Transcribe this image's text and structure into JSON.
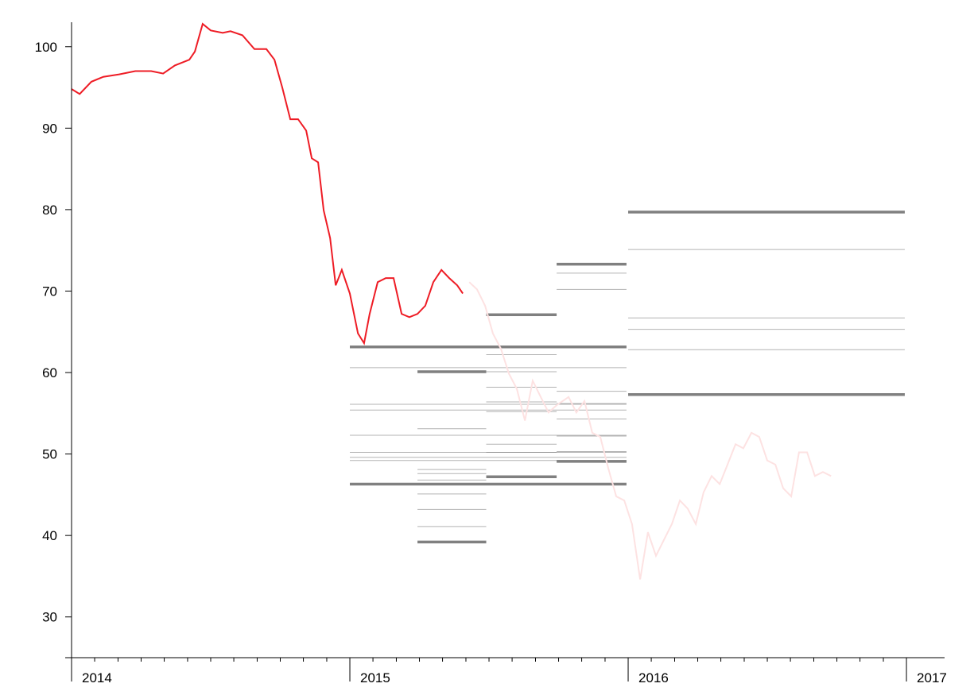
{
  "chart_data": {
    "type": "line",
    "xlim": [
      2014,
      2017.137
    ],
    "ylim": [
      25,
      103
    ],
    "xticks": [
      2014,
      2015,
      2016,
      2017
    ],
    "xminorticks": [
      2014.083,
      2014.167,
      2014.25,
      2014.333,
      2014.417,
      2014.5,
      2014.583,
      2014.667,
      2014.75,
      2014.833,
      2014.917,
      2015.083,
      2015.167,
      2015.25,
      2015.333,
      2015.417,
      2015.5,
      2015.583,
      2015.667,
      2015.75,
      2015.833,
      2015.917,
      2016.083,
      2016.167,
      2016.25,
      2016.333,
      2016.417,
      2016.5,
      2016.583,
      2016.667,
      2016.75,
      2016.833,
      2016.917
    ],
    "yticks": [
      30,
      40,
      50,
      60,
      70,
      80,
      90,
      100
    ],
    "series": [
      {
        "color": "#ee1c25",
        "x": [
          2014.0,
          2014.029,
          2014.071,
          2014.114,
          2014.171,
          2014.229,
          2014.286,
          2014.329,
          2014.371,
          2014.423,
          2014.443,
          2014.471,
          2014.5,
          2014.543,
          2014.571,
          2014.614,
          2014.657,
          2014.7,
          2014.729,
          2014.757,
          2014.786,
          2014.814,
          2014.843,
          2014.863,
          2014.886,
          2014.906,
          2014.929,
          2014.949,
          2014.971,
          2015.0,
          2015.029,
          2015.051,
          2015.071,
          2015.1,
          2015.129,
          2015.157,
          2015.186,
          2015.214,
          2015.243,
          2015.271,
          2015.3,
          2015.329,
          2015.357,
          2015.386,
          2015.406
        ],
        "values": [
          94.8,
          94.2,
          95.7,
          96.3,
          96.6,
          97,
          97,
          96.7,
          97.7,
          98.4,
          99.4,
          102.8,
          102,
          101.7,
          101.9,
          101.4,
          99.7,
          99.7,
          98.4,
          95,
          91.1,
          91.1,
          89.7,
          86.3,
          85.8,
          79.9,
          76.5,
          70.7,
          72.6,
          69.7,
          64.8,
          63.6,
          67.2,
          71.1,
          71.6,
          71.6,
          67.2,
          66.8,
          67.2,
          68.2,
          71.1,
          72.6,
          71.6,
          70.7,
          69.7
        ]
      },
      {
        "color": "#fde2e2",
        "x": [
          2015.429,
          2015.457,
          2015.486,
          2015.514,
          2015.543,
          2015.571,
          2015.6,
          2015.629,
          2015.657,
          2015.686,
          2015.714,
          2015.743,
          2015.786,
          2015.814,
          2015.843,
          2015.871,
          2015.9,
          2015.929,
          2015.957,
          2015.986,
          2016.014,
          2016.043,
          2016.071,
          2016.1,
          2016.129,
          2016.157,
          2016.186,
          2016.214,
          2016.243,
          2016.271,
          2016.3,
          2016.329,
          2016.357,
          2016.386,
          2016.414,
          2016.443,
          2016.471,
          2016.5,
          2016.529,
          2016.557,
          2016.586,
          2016.614,
          2016.643,
          2016.671,
          2016.7,
          2016.729
        ],
        "values": [
          71.1,
          70.2,
          68.2,
          64.8,
          62.9,
          59.9,
          58,
          54.1,
          59,
          57,
          55.1,
          56,
          57,
          55.1,
          56.5,
          52.6,
          52.1,
          48.2,
          44.8,
          44.3,
          41.4,
          34.6,
          40.4,
          37.5,
          39.5,
          41.4,
          44.3,
          43.3,
          41.4,
          45.3,
          47.3,
          46.3,
          48.7,
          51.2,
          50.7,
          52.6,
          52.1,
          49.2,
          48.7,
          45.8,
          44.8,
          50.2,
          50.2,
          47.3,
          47.8,
          47.3
        ]
      }
    ],
    "forecast_color": "#808080",
    "forecasts": [
      {
        "xlim": [
          2015.0,
          2015.994
        ],
        "values": [
          63.15,
          60.6,
          56.1,
          55.4,
          52.3,
          50.2,
          49.6,
          49.2,
          46.3
        ]
      },
      {
        "xlim": [
          2015.243,
          2015.49
        ],
        "values": [
          60.1,
          53.1,
          48.1,
          47.6,
          46.8,
          45.1,
          43.2,
          41.1,
          39.2
        ]
      },
      {
        "xlim": [
          2015.49,
          2015.743
        ],
        "values": [
          67.1,
          62.2,
          60.1,
          58.2,
          56.4,
          55.2,
          51.2,
          50.2,
          47.2
        ]
      },
      {
        "xlim": [
          2015.743,
          2015.994
        ],
        "values": [
          73.3,
          72.2,
          70.2,
          57.7,
          56.2,
          54.3,
          52.2,
          50.3,
          49.1
        ]
      },
      {
        "xlim": [
          2016.0,
          2016.994
        ],
        "values": [
          79.7,
          75.1,
          66.7,
          65.3,
          62.8,
          57.3
        ]
      }
    ]
  }
}
